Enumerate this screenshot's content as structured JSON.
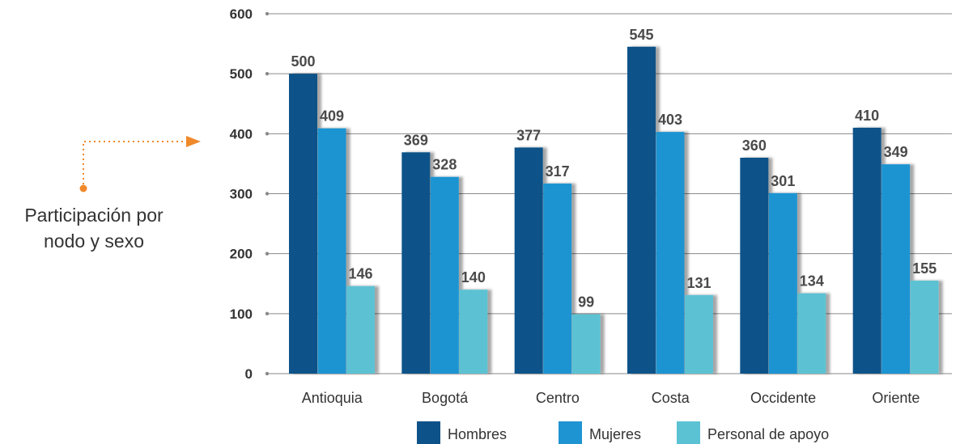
{
  "caption": {
    "line1": "Participación por",
    "line2": "nodo y sexo",
    "accent_color": "#f0892a"
  },
  "chart_data": {
    "type": "bar",
    "title": "",
    "xlabel": "",
    "ylabel": "",
    "ylim": [
      0,
      600
    ],
    "yticks": [
      0,
      100,
      200,
      300,
      400,
      500,
      600
    ],
    "grid": true,
    "legend_position": "bottom",
    "categories": [
      "Antioquia",
      "Bogotá",
      "Centro",
      "Costa",
      "Occidente",
      "Oriente"
    ],
    "series": [
      {
        "name": "Hombres",
        "color": "#0d5389",
        "values": [
          500,
          369,
          377,
          545,
          360,
          410
        ]
      },
      {
        "name": "Mujeres",
        "color": "#1f94d2",
        "values": [
          409,
          328,
          317,
          403,
          301,
          349
        ]
      },
      {
        "name": "Personal de apoyo",
        "color": "#5bc2d3",
        "values": [
          146,
          140,
          99,
          131,
          134,
          155
        ]
      }
    ]
  }
}
